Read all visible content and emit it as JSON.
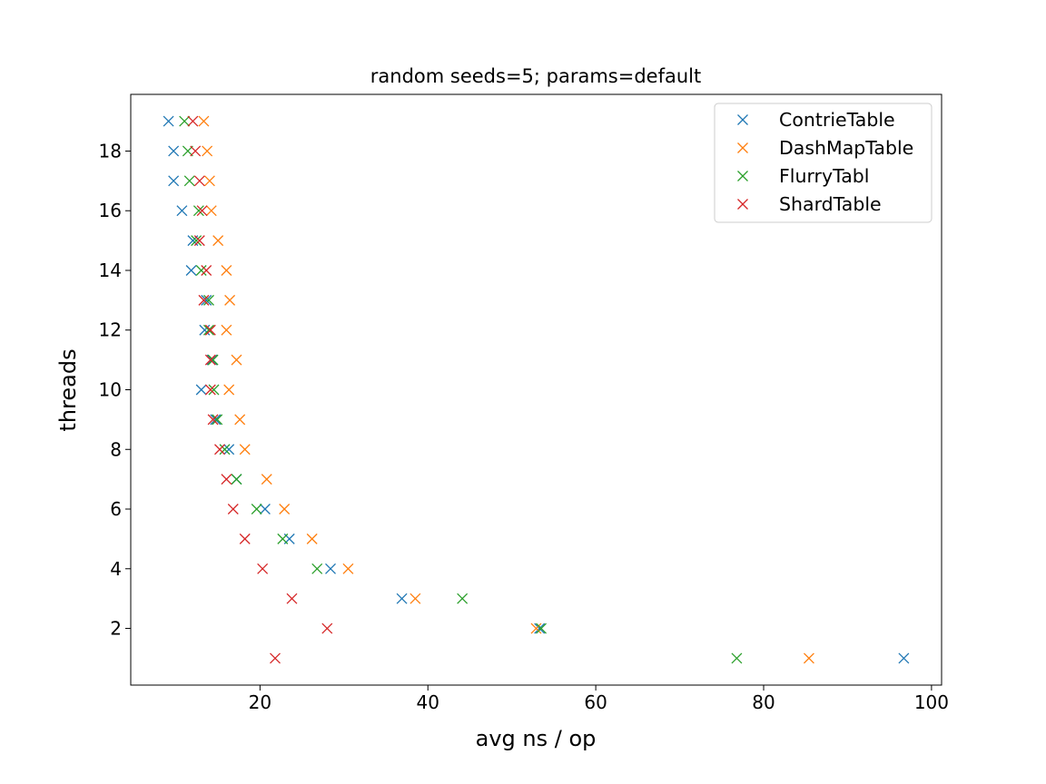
{
  "chart_data": {
    "type": "scatter",
    "title": "random seeds=5; params=default",
    "xlabel": "avg ns / op",
    "ylabel": "threads",
    "xlim": [
      4.6,
      101.2
    ],
    "ylim": [
      0.1,
      19.9
    ],
    "xticks": [
      20,
      40,
      60,
      80,
      100
    ],
    "yticks": [
      2,
      4,
      6,
      8,
      10,
      12,
      14,
      16,
      18
    ],
    "grid": false,
    "legend_position": "top-right",
    "marker": "x",
    "series": [
      {
        "name": "ContrieTable",
        "color": "#1f77b4",
        "points": [
          [
            96.7,
            1
          ],
          [
            53.3,
            2
          ],
          [
            36.9,
            3
          ],
          [
            28.4,
            4
          ],
          [
            23.5,
            5
          ],
          [
            20.6,
            6
          ],
          [
            17.2,
            7
          ],
          [
            16.3,
            8
          ],
          [
            14.7,
            9
          ],
          [
            13.0,
            10
          ],
          [
            14.3,
            11
          ],
          [
            13.4,
            12
          ],
          [
            13.6,
            13
          ],
          [
            11.8,
            14
          ],
          [
            12.0,
            15
          ],
          [
            10.7,
            16
          ],
          [
            9.7,
            17
          ],
          [
            9.7,
            18
          ],
          [
            9.1,
            19
          ]
        ]
      },
      {
        "name": "DashMapTable",
        "color": "#ff7f0e",
        "points": [
          [
            85.4,
            1
          ],
          [
            52.9,
            2
          ],
          [
            38.5,
            3
          ],
          [
            30.5,
            4
          ],
          [
            26.2,
            5
          ],
          [
            22.9,
            6
          ],
          [
            20.8,
            7
          ],
          [
            18.2,
            8
          ],
          [
            17.6,
            9
          ],
          [
            16.3,
            10
          ],
          [
            17.2,
            11
          ],
          [
            16.0,
            12
          ],
          [
            16.4,
            13
          ],
          [
            16.0,
            14
          ],
          [
            15.0,
            15
          ],
          [
            14.2,
            16
          ],
          [
            14.0,
            17
          ],
          [
            13.7,
            18
          ],
          [
            13.3,
            19
          ]
        ]
      },
      {
        "name": "FlurryTabl",
        "color": "#2ca02c",
        "points": [
          [
            76.8,
            1
          ],
          [
            53.5,
            2
          ],
          [
            44.1,
            3
          ],
          [
            26.8,
            4
          ],
          [
            22.7,
            5
          ],
          [
            19.6,
            6
          ],
          [
            17.2,
            7
          ],
          [
            15.8,
            8
          ],
          [
            14.9,
            9
          ],
          [
            14.5,
            10
          ],
          [
            14.4,
            11
          ],
          [
            13.9,
            12
          ],
          [
            13.9,
            13
          ],
          [
            13.0,
            14
          ],
          [
            12.4,
            15
          ],
          [
            12.7,
            16
          ],
          [
            11.6,
            17
          ],
          [
            11.4,
            18
          ],
          [
            11.0,
            19
          ]
        ]
      },
      {
        "name": "ShardTable",
        "color": "#d62728",
        "points": [
          [
            21.8,
            1
          ],
          [
            28.0,
            2
          ],
          [
            23.8,
            3
          ],
          [
            20.3,
            4
          ],
          [
            18.2,
            5
          ],
          [
            16.8,
            6
          ],
          [
            16.0,
            7
          ],
          [
            15.2,
            8
          ],
          [
            14.4,
            9
          ],
          [
            14.1,
            10
          ],
          [
            14.1,
            11
          ],
          [
            14.1,
            12
          ],
          [
            13.3,
            13
          ],
          [
            13.6,
            14
          ],
          [
            12.8,
            15
          ],
          [
            13.1,
            16
          ],
          [
            12.8,
            17
          ],
          [
            12.3,
            18
          ],
          [
            12.0,
            19
          ]
        ]
      }
    ]
  }
}
